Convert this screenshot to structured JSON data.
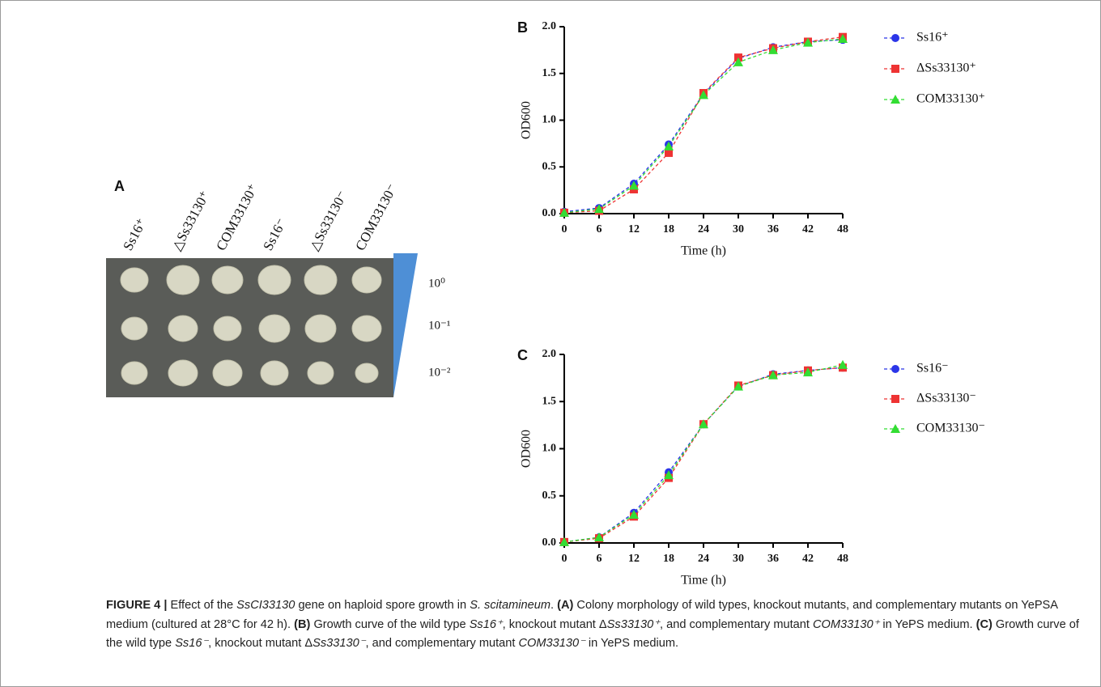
{
  "panel_a": {
    "label": "A",
    "strains": [
      "Ss16⁺",
      "△Ss33130⁺",
      "COM33130⁺",
      "Ss16⁻",
      "△Ss33130⁻",
      "COM33130⁻"
    ],
    "dilutions": [
      "10⁰",
      "10⁻¹",
      "10⁻²"
    ]
  },
  "chart_data": [
    {
      "type": "line",
      "panel_label": "B",
      "x_label": "Time (h)",
      "y_label": "OD600",
      "x": [
        0,
        6,
        12,
        18,
        24,
        30,
        36,
        42,
        48
      ],
      "xlim": [
        0,
        48
      ],
      "xticks": [
        0,
        6,
        12,
        18,
        24,
        30,
        36,
        42,
        48
      ],
      "ylim": [
        0,
        2
      ],
      "yticks": [
        {
          "value": 0,
          "label": "0.0"
        },
        0.5,
        {
          "value": 1,
          "label": "1.0"
        },
        1.5,
        {
          "value": 2,
          "label": "2.0"
        }
      ],
      "series": [
        {
          "name": "Ss16⁺",
          "color": "#2b35e8",
          "values": [
            0.02,
            0.06,
            0.32,
            0.74,
            1.28,
            1.66,
            1.78,
            1.84,
            1.86
          ]
        },
        {
          "name": "ΔSs33130⁺",
          "color": "#ee3333",
          "values": [
            0.01,
            0.03,
            0.26,
            0.65,
            1.29,
            1.67,
            1.77,
            1.84,
            1.89
          ]
        },
        {
          "name": "COM33130⁺",
          "color": "#33dd33",
          "values": [
            0.01,
            0.05,
            0.3,
            0.72,
            1.27,
            1.62,
            1.75,
            1.83,
            1.87
          ]
        }
      ]
    },
    {
      "type": "line",
      "panel_label": "C",
      "x_label": "Time (h)",
      "y_label": "OD600",
      "x": [
        0,
        6,
        12,
        18,
        24,
        30,
        36,
        42,
        48
      ],
      "xlim": [
        0,
        48
      ],
      "xticks": [
        0,
        6,
        12,
        18,
        24,
        30,
        36,
        42,
        48
      ],
      "ylim": [
        0,
        2
      ],
      "yticks": [
        {
          "value": 0,
          "label": "0.0"
        },
        0.5,
        {
          "value": 1,
          "label": "1.0"
        },
        1.5,
        {
          "value": 2,
          "label": "2.0"
        }
      ],
      "series": [
        {
          "name": "Ss16⁻",
          "color": "#2b35e8",
          "values": [
            0.01,
            0.06,
            0.32,
            0.75,
            1.26,
            1.66,
            1.79,
            1.83,
            1.86
          ]
        },
        {
          "name": "ΔSs33130⁻",
          "color": "#ee3333",
          "values": [
            0.01,
            0.05,
            0.28,
            0.69,
            1.26,
            1.67,
            1.78,
            1.83,
            1.86
          ]
        },
        {
          "name": "COM33130⁻",
          "color": "#33dd33",
          "values": [
            0.01,
            0.06,
            0.3,
            0.72,
            1.26,
            1.66,
            1.78,
            1.81,
            1.89
          ]
        }
      ]
    }
  ],
  "caption": {
    "segments": [
      "FIGURE 4 | ",
      "Effect of the ",
      "SsCI33130",
      " gene on haploid spore growth in ",
      "S. scitamineum",
      ". ",
      "(A)",
      " Colony morphology of wild types, knockout mutants, and complementary mutants on YePSA medium (cultured at 28°C for 42 h). ",
      "(B)",
      " Growth curve of the wild type ",
      "Ss16⁺",
      ", knockout mutant Δ",
      "Ss33130⁺",
      ", and complementary mutant ",
      "COM33130⁺",
      " in YePS medium. ",
      "(C)",
      " Growth curve of the wild type ",
      "Ss16⁻",
      ", knockout mutant Δ",
      "Ss33130⁻",
      ", and complementary mutant ",
      "COM33130⁻",
      " in YePS medium."
    ]
  }
}
